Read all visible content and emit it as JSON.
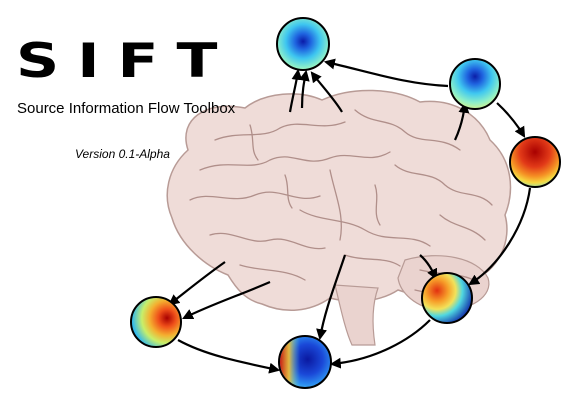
{
  "title": "SIFT",
  "subtitle": "Source Information Flow Toolbox",
  "version": "Version 0.1-Alpha",
  "colors": {
    "brain_fill": "#efdcd8",
    "brain_stroke": "#b89b96",
    "arrow": "#000000"
  },
  "nodes": [
    {
      "id": "top-left",
      "icon": "scalp-map-icon"
    },
    {
      "id": "top-right",
      "icon": "scalp-map-icon"
    },
    {
      "id": "right-red",
      "icon": "scalp-map-icon"
    },
    {
      "id": "mid-right",
      "icon": "scalp-map-icon"
    },
    {
      "id": "bottom-left",
      "icon": "scalp-map-icon"
    },
    {
      "id": "bottom-center",
      "icon": "scalp-map-icon"
    }
  ]
}
